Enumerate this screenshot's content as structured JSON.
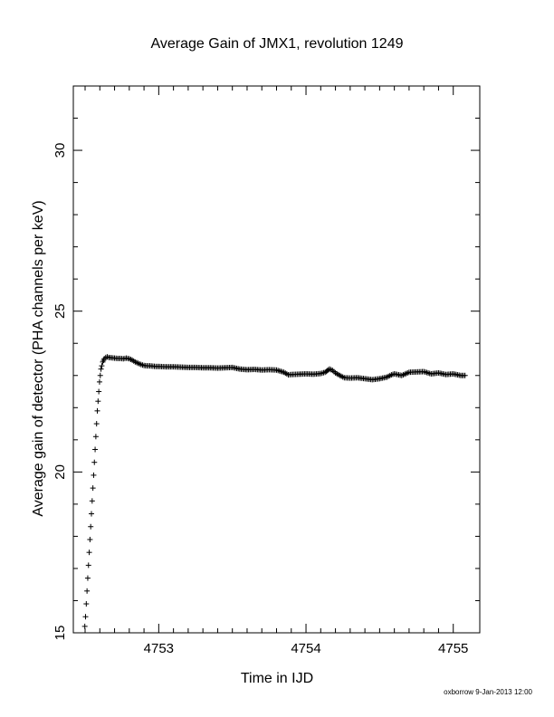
{
  "chart_data": {
    "type": "scatter",
    "title": "Average Gain of JMX1, revolution 1249",
    "xlabel": "Time in IJD",
    "ylabel": "Average gain of detector (PHA channels per keV)",
    "xlim": [
      4752.42,
      4755.18
    ],
    "ylim": [
      15,
      32
    ],
    "xticks": [
      4753,
      4754,
      4755
    ],
    "yticks": [
      15,
      20,
      25,
      30
    ],
    "xtick_labels": [
      "4753",
      "4754",
      "4755"
    ],
    "ytick_labels": [
      "15",
      "20",
      "25",
      "30"
    ],
    "marker": "+",
    "marker_color": "#000000",
    "grid": false,
    "series": [
      {
        "x": [
          4752.498,
          4752.503,
          4752.508,
          4752.513,
          4752.518,
          4752.523,
          4752.528,
          4752.533,
          4752.538,
          4752.543,
          4752.548,
          4752.553,
          4752.558,
          4752.563,
          4752.568,
          4752.573,
          4752.578,
          4752.583,
          4752.588,
          4752.593,
          4752.598,
          4752.603,
          4752.608,
          4752.613,
          4752.62,
          4752.63,
          4752.64,
          4752.65,
          4752.66,
          4752.68,
          4752.7,
          4752.72,
          4752.74,
          4752.76,
          4752.78,
          4752.8,
          4752.82,
          4752.84,
          4752.86,
          4752.88,
          4752.9,
          4752.92,
          4752.94,
          4752.96,
          4752.98,
          4753.0,
          4753.05,
          4753.1,
          4753.15,
          4753.2,
          4753.25,
          4753.3,
          4753.35,
          4753.4,
          4753.45,
          4753.5,
          4753.55,
          4753.6,
          4753.65,
          4753.7,
          4753.75,
          4753.8,
          4753.85,
          4753.88,
          4753.9,
          4753.95,
          4754.0,
          4754.05,
          4754.1,
          4754.13,
          4754.16,
          4754.18,
          4754.2,
          4754.23,
          4754.26,
          4754.3,
          4754.35,
          4754.4,
          4754.45,
          4754.5,
          4754.55,
          4754.58,
          4754.6,
          4754.65,
          4754.68,
          4754.7,
          4754.75,
          4754.8,
          4754.85,
          4754.9,
          4754.95,
          4755.0,
          4755.05,
          4755.08
        ],
        "y": [
          15.2,
          15.5,
          15.9,
          16.3,
          16.7,
          17.1,
          17.5,
          17.9,
          18.3,
          18.7,
          19.1,
          19.5,
          19.9,
          20.3,
          20.7,
          21.1,
          21.5,
          21.9,
          22.2,
          22.5,
          22.8,
          23.0,
          23.2,
          23.3,
          23.42,
          23.52,
          23.56,
          23.58,
          23.56,
          23.55,
          23.54,
          23.53,
          23.53,
          23.52,
          23.54,
          23.52,
          23.48,
          23.42,
          23.38,
          23.34,
          23.31,
          23.3,
          23.3,
          23.29,
          23.28,
          23.28,
          23.27,
          23.27,
          23.26,
          23.25,
          23.25,
          23.24,
          23.24,
          23.23,
          23.24,
          23.25,
          23.2,
          23.18,
          23.19,
          23.17,
          23.18,
          23.17,
          23.1,
          23.02,
          23.03,
          23.04,
          23.05,
          23.04,
          23.06,
          23.1,
          23.2,
          23.16,
          23.08,
          23.0,
          22.93,
          22.92,
          22.93,
          22.9,
          22.87,
          22.9,
          22.95,
          23.02,
          23.05,
          23.0,
          23.06,
          23.1,
          23.11,
          23.12,
          23.05,
          23.08,
          23.03,
          23.05,
          23.0,
          23.0
        ]
      }
    ]
  },
  "footer": "oxborrow  9-Jan-2013 12:00"
}
